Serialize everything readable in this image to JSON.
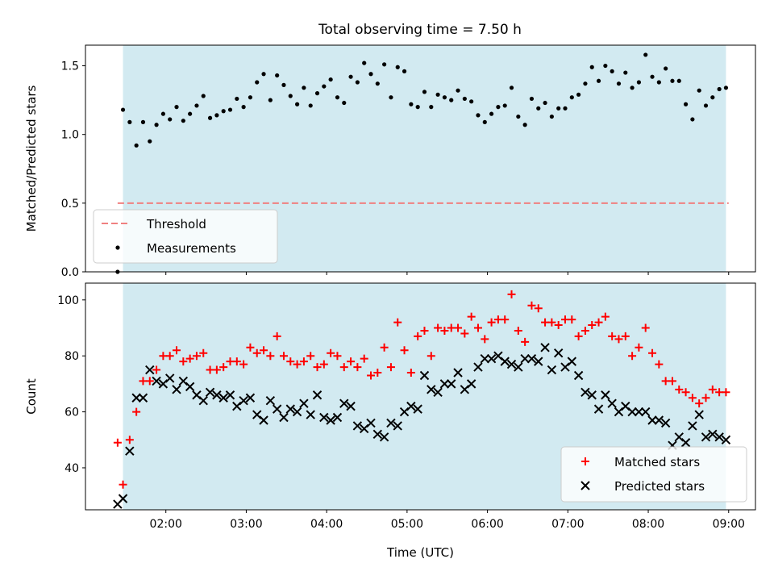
{
  "figure_title": "Total observing time = 7.50 h",
  "colors": {
    "shade": "#add8e6",
    "threshold": "#f08080",
    "measurements": "#000000",
    "matched": "#ff0000",
    "predicted": "#000000"
  },
  "chart_data": [
    {
      "type": "scatter",
      "title": "Total observing time = 7.50 h",
      "xlabel": "",
      "ylabel": "Matched/Predicted stars",
      "xlim": [
        "01:00",
        "09:20"
      ],
      "ylim": [
        0,
        1.65
      ],
      "yticks": [
        0.0,
        0.5,
        1.0,
        1.5
      ],
      "ytick_labels": [
        "0.0",
        "0.5",
        "1.0",
        "1.5"
      ],
      "shaded_span": [
        "01:28",
        "08:58"
      ],
      "legend": {
        "location": "lower-left",
        "entries": [
          "Threshold",
          "Measurements"
        ]
      },
      "threshold": {
        "name": "Threshold",
        "value": 0.5,
        "x_range": [
          "01:24",
          "09:00"
        ]
      },
      "series": [
        {
          "name": "Measurements",
          "x": [
            "01:24",
            "01:28",
            "01:33",
            "01:38",
            "01:43",
            "01:48",
            "01:53",
            "01:58",
            "02:03",
            "02:08",
            "02:13",
            "02:18",
            "02:23",
            "02:28",
            "02:33",
            "02:38",
            "02:43",
            "02:48",
            "02:53",
            "02:58",
            "03:03",
            "03:08",
            "03:13",
            "03:18",
            "03:23",
            "03:28",
            "03:33",
            "03:38",
            "03:43",
            "03:48",
            "03:53",
            "03:58",
            "04:03",
            "04:08",
            "04:13",
            "04:18",
            "04:23",
            "04:28",
            "04:33",
            "04:38",
            "04:43",
            "04:48",
            "04:53",
            "04:58",
            "05:03",
            "05:08",
            "05:13",
            "05:18",
            "05:23",
            "05:28",
            "05:33",
            "05:38",
            "05:43",
            "05:48",
            "05:53",
            "05:58",
            "06:03",
            "06:08",
            "06:13",
            "06:18",
            "06:23",
            "06:28",
            "06:33",
            "06:38",
            "06:43",
            "06:48",
            "06:53",
            "06:58",
            "07:03",
            "07:08",
            "07:13",
            "07:18",
            "07:23",
            "07:28",
            "07:33",
            "07:38",
            "07:43",
            "07:48",
            "07:53",
            "07:58",
            "08:03",
            "08:08",
            "08:13",
            "08:18",
            "08:23",
            "08:28",
            "08:33",
            "08:38",
            "08:43",
            "08:48",
            "08:53",
            "08:58"
          ],
          "y": [
            0.0,
            1.18,
            1.09,
            0.92,
            1.09,
            0.95,
            1.07,
            1.15,
            1.11,
            1.2,
            1.1,
            1.15,
            1.21,
            1.28,
            1.12,
            1.14,
            1.17,
            1.18,
            1.26,
            1.2,
            1.27,
            1.38,
            1.44,
            1.25,
            1.43,
            1.36,
            1.28,
            1.22,
            1.34,
            1.21,
            1.3,
            1.35,
            1.4,
            1.27,
            1.23,
            1.42,
            1.38,
            1.52,
            1.44,
            1.37,
            1.51,
            1.27,
            1.49,
            1.46,
            1.22,
            1.2,
            1.31,
            1.2,
            1.29,
            1.27,
            1.25,
            1.32,
            1.26,
            1.24,
            1.14,
            1.09,
            1.15,
            1.2,
            1.21,
            1.34,
            1.13,
            1.07,
            1.26,
            1.19,
            1.23,
            1.13,
            1.19,
            1.19,
            1.27,
            1.29,
            1.37,
            1.49,
            1.39,
            1.5,
            1.46,
            1.37,
            1.45,
            1.34,
            1.38,
            1.58,
            1.42,
            1.38,
            1.48,
            1.39,
            1.39,
            1.22,
            1.11,
            1.32,
            1.21,
            1.27,
            1.33,
            1.34
          ]
        }
      ]
    },
    {
      "type": "scatter",
      "title": "",
      "xlabel": "Time (UTC)",
      "ylabel": "Count",
      "xlim": [
        "01:00",
        "09:20"
      ],
      "ylim": [
        25,
        106
      ],
      "xticks": [
        "02:00",
        "03:00",
        "04:00",
        "05:00",
        "06:00",
        "07:00",
        "08:00",
        "09:00"
      ],
      "xtick_labels": [
        "02:00",
        "03:00",
        "04:00",
        "05:00",
        "06:00",
        "07:00",
        "08:00",
        "09:00"
      ],
      "yticks": [
        40,
        60,
        80,
        100
      ],
      "ytick_labels": [
        "40",
        "60",
        "80",
        "100"
      ],
      "shaded_span": [
        "01:28",
        "08:58"
      ],
      "legend": {
        "location": "lower-right",
        "entries": [
          "Matched stars",
          "Predicted stars"
        ]
      },
      "x": [
        "01:24",
        "01:28",
        "01:33",
        "01:38",
        "01:43",
        "01:48",
        "01:53",
        "01:58",
        "02:03",
        "02:08",
        "02:13",
        "02:18",
        "02:23",
        "02:28",
        "02:33",
        "02:38",
        "02:43",
        "02:48",
        "02:53",
        "02:58",
        "03:03",
        "03:08",
        "03:13",
        "03:18",
        "03:23",
        "03:28",
        "03:33",
        "03:38",
        "03:43",
        "03:48",
        "03:53",
        "03:58",
        "04:03",
        "04:08",
        "04:13",
        "04:18",
        "04:23",
        "04:28",
        "04:33",
        "04:38",
        "04:43",
        "04:48",
        "04:53",
        "04:58",
        "05:03",
        "05:08",
        "05:13",
        "05:18",
        "05:23",
        "05:28",
        "05:33",
        "05:38",
        "05:43",
        "05:48",
        "05:53",
        "05:58",
        "06:03",
        "06:08",
        "06:13",
        "06:18",
        "06:23",
        "06:28",
        "06:33",
        "06:38",
        "06:43",
        "06:48",
        "06:53",
        "06:58",
        "07:03",
        "07:08",
        "07:13",
        "07:18",
        "07:23",
        "07:28",
        "07:33",
        "07:38",
        "07:43",
        "07:48",
        "07:53",
        "07:58",
        "08:03",
        "08:08",
        "08:13",
        "08:18",
        "08:23",
        "08:28",
        "08:33",
        "08:38",
        "08:43",
        "08:48",
        "08:53",
        "08:58"
      ],
      "series": [
        {
          "name": "Matched stars",
          "marker": "plus",
          "y": [
            49,
            34,
            50,
            60,
            71,
            71,
            75,
            80,
            80,
            82,
            78,
            79,
            80,
            81,
            75,
            75,
            76,
            78,
            78,
            77,
            83,
            81,
            82,
            80,
            87,
            80,
            78,
            77,
            78,
            80,
            76,
            77,
            81,
            80,
            76,
            78,
            76,
            79,
            73,
            74,
            83,
            76,
            92,
            82,
            74,
            87,
            89,
            80,
            90,
            89,
            90,
            90,
            88,
            94,
            90,
            86,
            92,
            93,
            93,
            102,
            89,
            85,
            98,
            97,
            92,
            92,
            91,
            93,
            93,
            87,
            89,
            91,
            92,
            94,
            87,
            86,
            87,
            80,
            83,
            90,
            81,
            77,
            71,
            71,
            68,
            67,
            65,
            63,
            65,
            68,
            67,
            67
          ]
        },
        {
          "name": "Predicted stars",
          "marker": "x",
          "y": [
            27,
            29,
            46,
            65,
            65,
            75,
            71,
            70,
            72,
            68,
            71,
            69,
            66,
            64,
            67,
            66,
            65,
            66,
            62,
            64,
            65,
            59,
            57,
            64,
            61,
            58,
            61,
            60,
            63,
            59,
            66,
            58,
            57,
            58,
            63,
            62,
            55,
            54,
            56,
            52,
            51,
            56,
            55,
            60,
            62,
            61,
            73,
            68,
            67,
            70,
            70,
            74,
            68,
            70,
            76,
            79,
            79,
            80,
            78,
            77,
            76,
            79,
            79,
            78,
            83,
            75,
            81,
            76,
            78,
            73,
            67,
            66,
            61,
            66,
            63,
            60,
            62,
            60,
            60,
            60,
            57,
            57,
            56,
            48,
            51,
            49,
            55,
            59,
            51,
            52,
            51,
            50
          ]
        }
      ]
    }
  ]
}
